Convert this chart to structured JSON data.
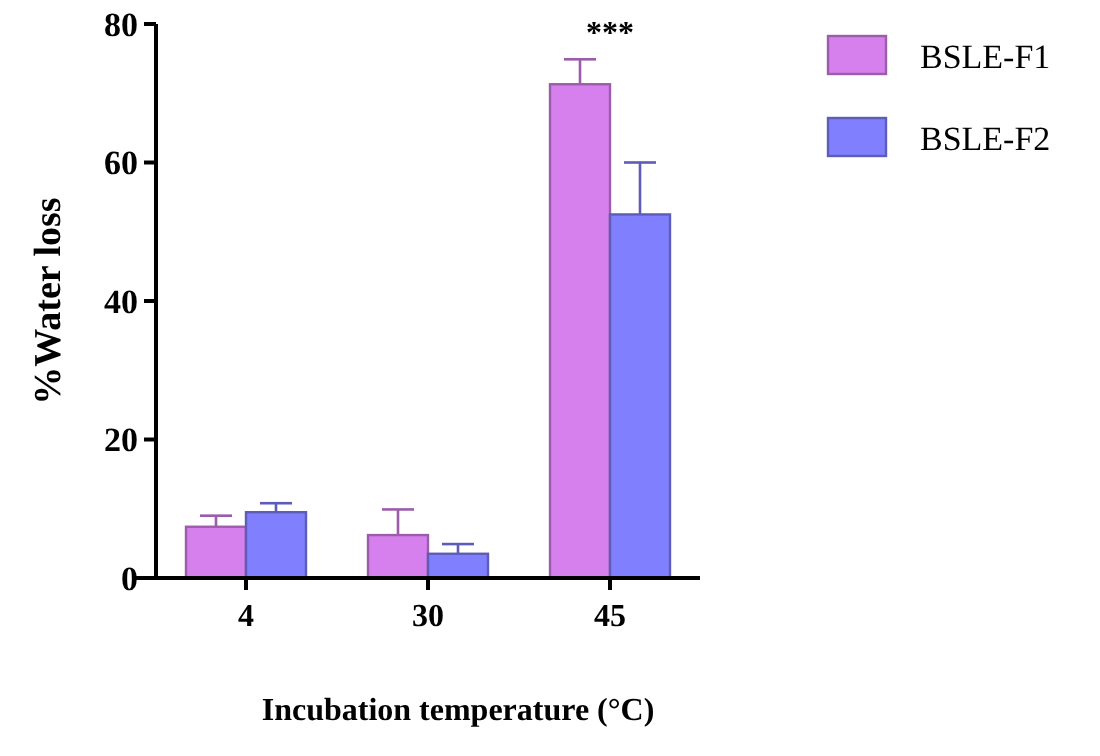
{
  "chart_data": {
    "type": "bar",
    "xlabel": "Incubation temperature (°C)",
    "ylabel": "%Water loss",
    "categories": [
      "4",
      "30",
      "45"
    ],
    "series": [
      {
        "name": "BSLE-F1",
        "color": "#d580ec",
        "values": [
          7.4,
          6.2,
          71.3
        ],
        "errors": [
          [
            7.4,
            9.0
          ],
          [
            6.2,
            9.9
          ],
          [
            71.3,
            74.9
          ]
        ]
      },
      {
        "name": "BSLE-F2",
        "color": "#8080ff",
        "values": [
          9.5,
          3.5,
          52.5
        ],
        "errors": [
          [
            9.5,
            10.8
          ],
          [
            3.5,
            4.9
          ],
          [
            52.5,
            60.0
          ]
        ]
      }
    ],
    "ylim": [
      0,
      80
    ],
    "yticks": [
      0,
      20,
      40,
      60,
      80
    ],
    "grid": false,
    "legend": "right",
    "annotations": [
      "***"
    ]
  }
}
